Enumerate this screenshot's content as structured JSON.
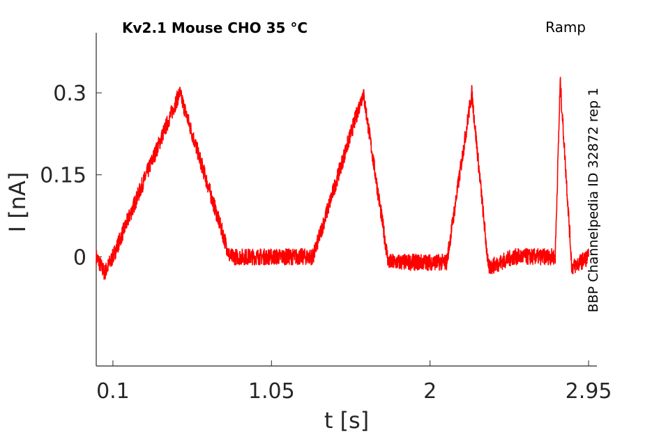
{
  "chart_data": {
    "type": "line",
    "title": "Kv2.1  Mouse  CHO  35 °C",
    "protocol_label": "Ramp",
    "source_label": "BBP Channelpedia ID 32872 rep 1",
    "xlabel": "t [s]",
    "ylabel": "I [nA]",
    "xlim": [
      0.0,
      3.0
    ],
    "ylim": [
      -0.2,
      0.41
    ],
    "xticks": [
      0.1,
      1.05,
      2,
      2.95
    ],
    "xtick_labels": [
      "0.1",
      "1.05",
      "2",
      "2.95"
    ],
    "yticks": [
      0,
      0.15,
      0.3
    ],
    "ytick_labels": [
      "0",
      "0.15",
      "0.3"
    ],
    "grid": false,
    "series_color": "#ff0000",
    "series": [
      {
        "x": [
          0.0,
          0.05,
          0.1,
          0.5,
          0.8,
          1.2,
          1.3,
          1.6,
          1.75,
          2.1,
          2.25,
          2.35,
          2.5,
          2.75,
          2.78,
          2.85,
          2.95
        ],
        "y": [
          0.0,
          -0.03,
          0.0,
          0.3,
          0.0,
          0.0,
          0.0,
          0.3,
          -0.01,
          -0.01,
          0.3,
          -0.02,
          0.0,
          0.0,
          0.32,
          -0.02,
          0.0
        ]
      }
    ],
    "noise_amplitude": 0.015
  }
}
